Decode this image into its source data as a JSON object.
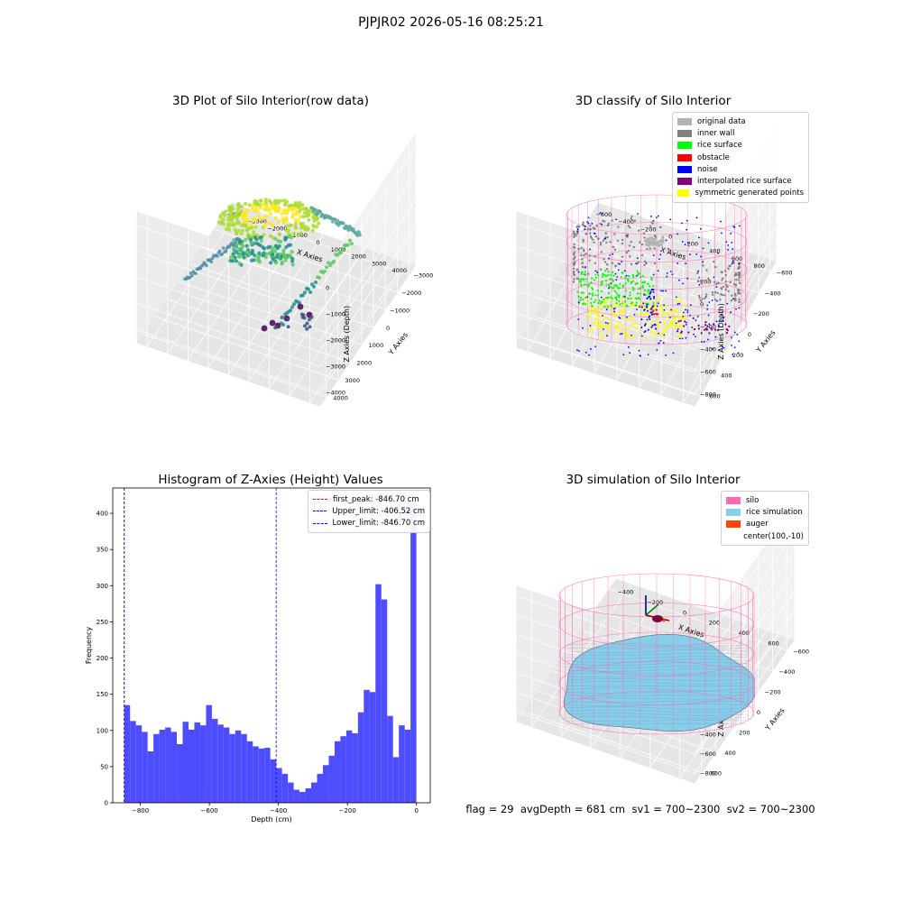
{
  "figure": {
    "suptitle": "PJPJR02 2026-05-16 08:25:21",
    "footer": {
      "flag": "flag = 29",
      "avg_depth": "avgDepth = 681 cm",
      "sv1": "sv1 = 700~2300",
      "sv2": "sv2 = 700~2300"
    }
  },
  "chart_data": [
    {
      "type": "scatter",
      "title": "3D Plot of Silo Interior(row data)",
      "xlabel": "X Axies",
      "ylabel": "Y Axies",
      "zlabel": "Z Axies (Depth)",
      "x_ticks": [
        "−4000",
        "−3000",
        "−2000",
        "−1000",
        "0",
        "1000",
        "2000",
        "3000",
        "4000"
      ],
      "y_ticks": [
        "−3000",
        "−2000",
        "−1000",
        "0",
        "1000",
        "2000",
        "3000",
        "4000"
      ],
      "z_ticks": [
        "−4000",
        "−3000",
        "−2000",
        "−1000",
        "0"
      ],
      "xlim": [
        -4000,
        4000
      ],
      "ylim": [
        -3000,
        4000
      ],
      "zlim": [
        -4500,
        0
      ],
      "colormap": "viridis",
      "grid": true
    },
    {
      "type": "scatter",
      "title": "3D classify of Silo Interior",
      "xlabel": "X Axies",
      "ylabel": "Y Axies",
      "zlabel": "Z Axies (Depth)",
      "x_ticks": [
        "−600",
        "−400",
        "−200",
        "0",
        "200",
        "400",
        "600",
        "800"
      ],
      "y_ticks": [
        "−600",
        "−400",
        "−200",
        "0",
        "200",
        "400",
        "600"
      ],
      "z_ticks": [
        "−800",
        "−600",
        "−400",
        "−200",
        "0",
        "200"
      ],
      "legend_position": "top-right",
      "legend": [
        {
          "label": "original data",
          "color": "#b3b3b3"
        },
        {
          "label": "inner wall",
          "color": "#808080"
        },
        {
          "label": "rice surface",
          "color": "#00ff00"
        },
        {
          "label": "obstacle",
          "color": "#ff0000"
        },
        {
          "label": "noise",
          "color": "#0000ff"
        },
        {
          "label": "interpolated rice surface",
          "color": "#800080"
        },
        {
          "label": "symmetric generated points",
          "color": "#ffff00"
        }
      ],
      "silo_wire_color": "#ff69b4",
      "grid": true
    },
    {
      "type": "bar",
      "title": "Histogram of Z-Axies (Height) Values",
      "xlabel": "Depth (cm)",
      "ylabel": "Frequency",
      "xlim": [
        -880,
        40
      ],
      "ylim": [
        0,
        435
      ],
      "x_ticks": [
        -800,
        -600,
        -400,
        -200,
        0
      ],
      "x_tick_labels": [
        "−800",
        "−600",
        "−400",
        "−200",
        "0"
      ],
      "y_ticks": [
        0,
        50,
        100,
        150,
        200,
        250,
        300,
        350,
        400
      ],
      "bar_color": "#4d4dff",
      "bin_start": -846.7,
      "bin_width": 16.93,
      "values": [
        135,
        113,
        107,
        98,
        71,
        95,
        101,
        104,
        98,
        81,
        112,
        101,
        111,
        107,
        135,
        116,
        108,
        104,
        95,
        100,
        95,
        85,
        78,
        75,
        76,
        60,
        48,
        40,
        28,
        18,
        15,
        20,
        28,
        40,
        52,
        65,
        85,
        92,
        100,
        96,
        125,
        156,
        153,
        302,
        281,
        120,
        63,
        107,
        101,
        417
      ],
      "vlines": [
        {
          "label": "first_peak: -846.70 cm",
          "x": -846.7,
          "color": "#ff0000"
        },
        {
          "label": "Upper_limit: -406.52 cm",
          "x": -406.52,
          "color": "#0000ff"
        },
        {
          "label": "Lower_limit: -846.70 cm",
          "x": -846.7,
          "color": "#0000ff"
        }
      ],
      "legend_position": "top-right"
    },
    {
      "type": "scatter",
      "title": "3D simulation of Silo Interior",
      "xlabel": "X Axies",
      "ylabel": "Y Axies",
      "zlabel": "Z Axies (Depth)",
      "x_ticks": [
        "−400",
        "−200",
        "0",
        "200",
        "400",
        "600"
      ],
      "y_ticks": [
        "−600",
        "−400",
        "−200",
        "0",
        "200",
        "400",
        "600"
      ],
      "z_ticks": [
        "−800",
        "−600",
        "−400",
        "−200",
        "0",
        "200",
        "400"
      ],
      "legend_position": "top-right",
      "legend": [
        {
          "label": "silo",
          "color": "#ff69b4"
        },
        {
          "label": "rice simulation",
          "color": "#87ceeb"
        },
        {
          "label": "auger",
          "color": "#ff4500"
        },
        {
          "label": "center(100,-10)",
          "color": ""
        }
      ],
      "grid": true
    }
  ]
}
